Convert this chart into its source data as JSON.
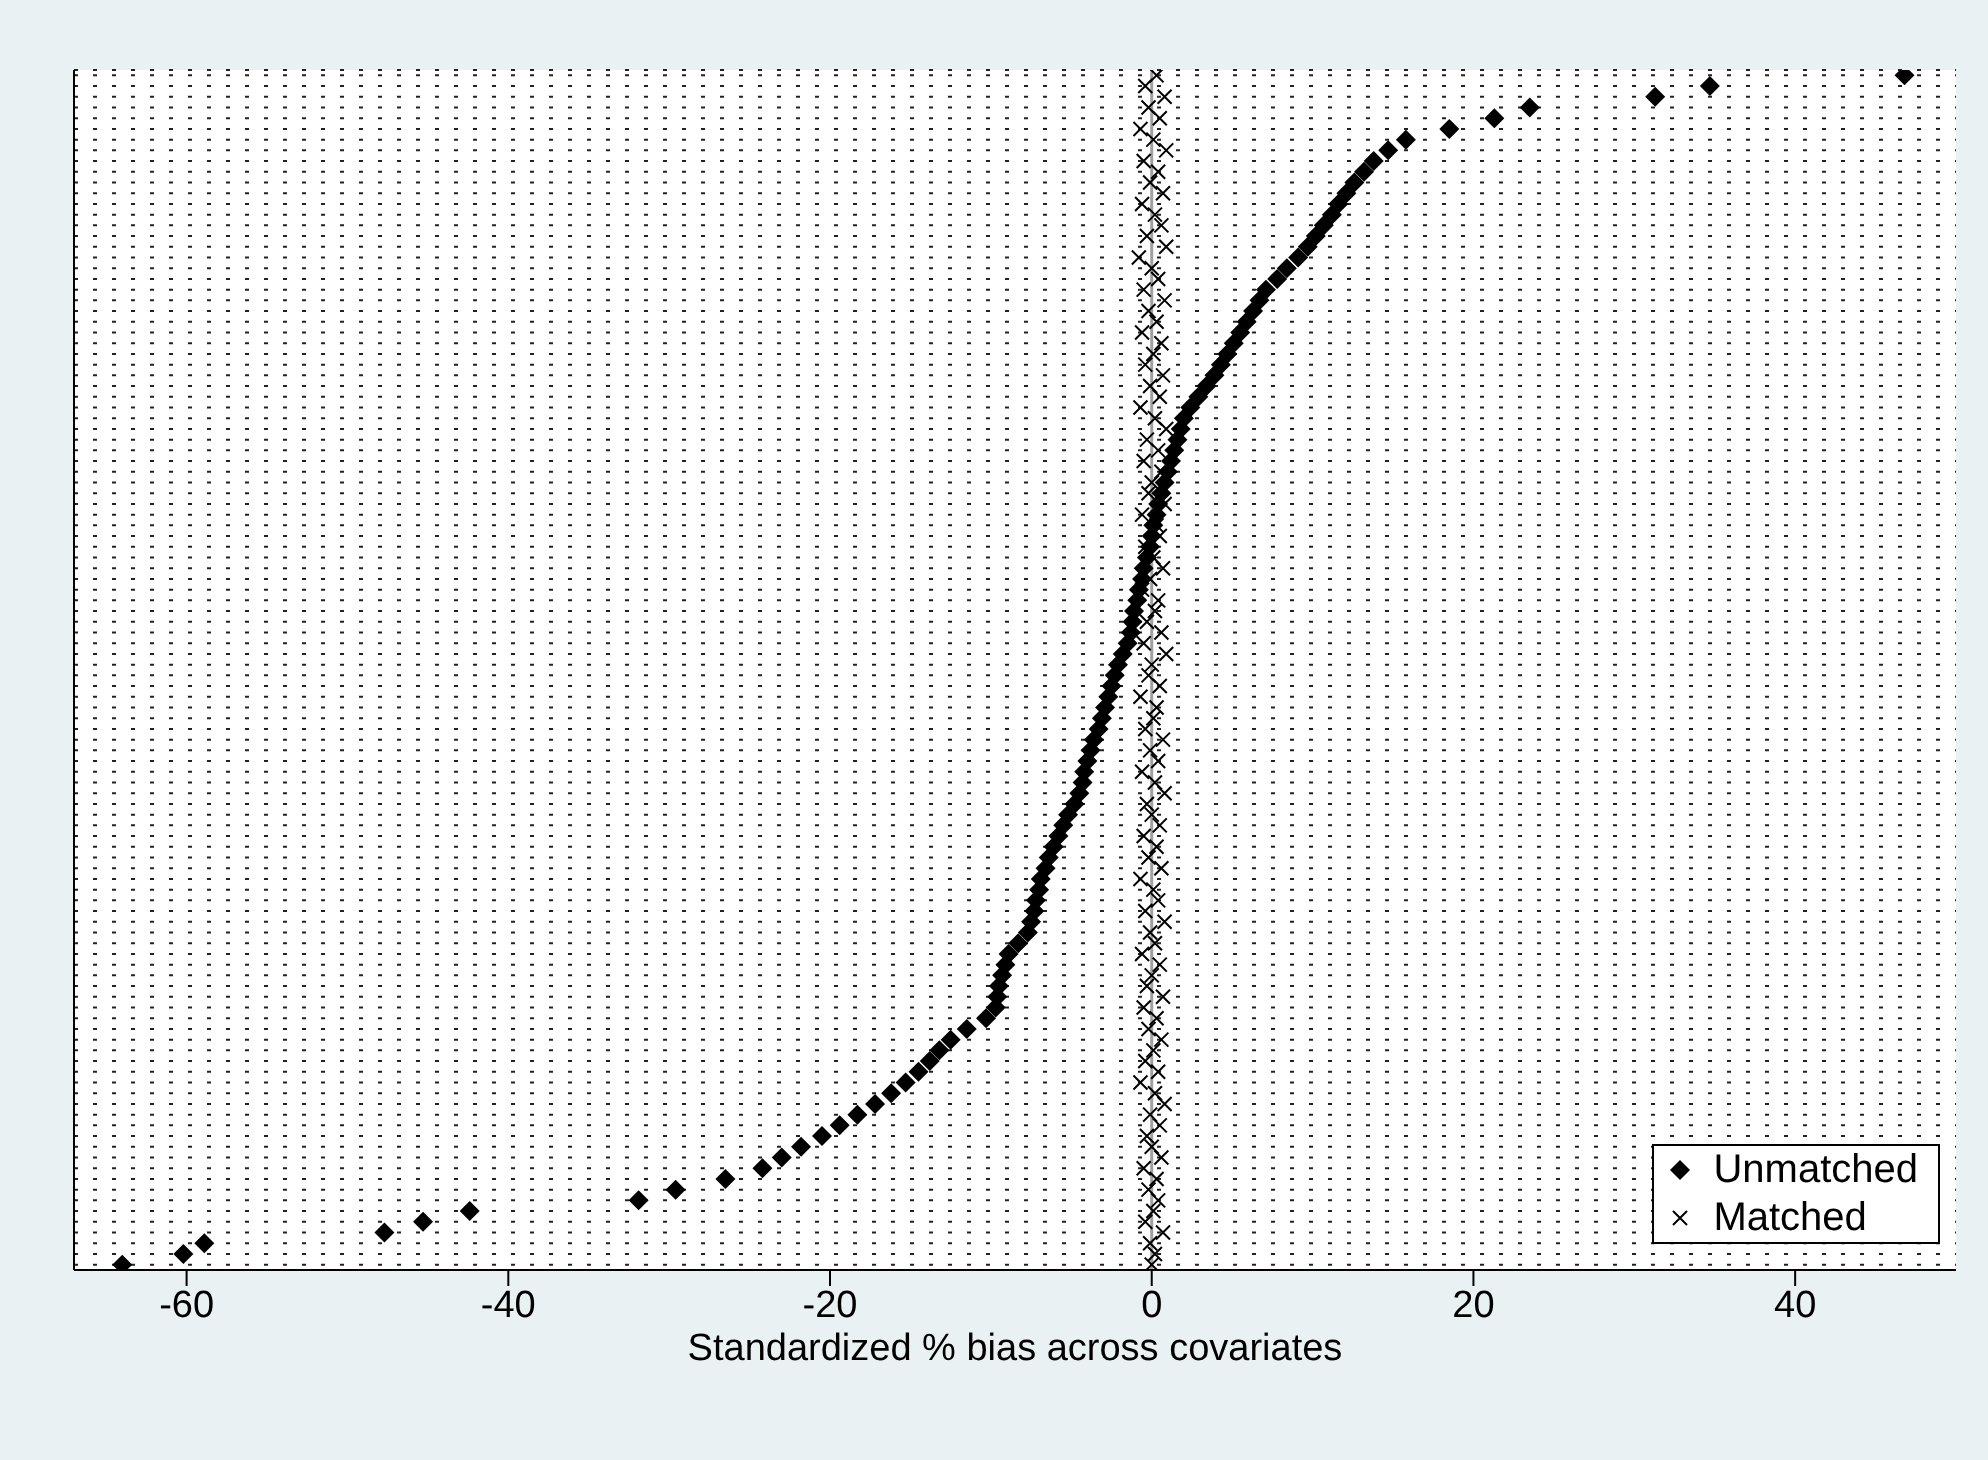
{
  "chart_data": {
    "type": "scatter",
    "orientation": "horizontal",
    "xlabel": "Standardized % bias across covariates",
    "xlim": [
      -67,
      50
    ],
    "xticks": [
      -60,
      -40,
      -20,
      0,
      20,
      40
    ],
    "tick_labels": "x",
    "grid": "y",
    "legend": "bottom right",
    "ref_lines": [
      {
        "axis": "x",
        "value": 0,
        "color": "#a0a0a0"
      }
    ],
    "categories": [
      null,
      null,
      null,
      null,
      null,
      null,
      null,
      null,
      null,
      null,
      null,
      null,
      null,
      null,
      null,
      null,
      null,
      null,
      null,
      null,
      null,
      null,
      null,
      null,
      null,
      null,
      null,
      null,
      null,
      null,
      null,
      null,
      null,
      null,
      null,
      null,
      null,
      null,
      null,
      null,
      null,
      null,
      null,
      null,
      null,
      null,
      null,
      null,
      null,
      null,
      null,
      null,
      null,
      null,
      null,
      null,
      null,
      null,
      null,
      null,
      null,
      null,
      null,
      null,
      null,
      null,
      null,
      null,
      null,
      null,
      null,
      null,
      null,
      null,
      null,
      null,
      null,
      null,
      null,
      null,
      null,
      null,
      null,
      null,
      null,
      null,
      null,
      null,
      null,
      null,
      null,
      null,
      null,
      null,
      null,
      null,
      null,
      null,
      null,
      null,
      null,
      null,
      null,
      null,
      null,
      null,
      null,
      null,
      null,
      null,
      null,
      null
    ],
    "series": [
      {
        "name": "Unmatched",
        "color": "#000000",
        "marker": "diamond",
        "values": [
          46.8,
          34.7,
          31.3,
          23.5,
          21.3,
          18.5,
          15.8,
          14.7,
          13.8,
          13.2,
          12.6,
          12.1,
          11.6,
          11.2,
          10.7,
          10.2,
          9.7,
          9.1,
          8.4,
          7.8,
          7.1,
          6.7,
          6.3,
          5.9,
          5.5,
          5.1,
          4.7,
          4.3,
          3.9,
          3.4,
          2.9,
          2.4,
          2.0,
          1.8,
          1.6,
          1.4,
          1.2,
          1.0,
          0.8,
          0.6,
          0.4,
          0.3,
          0.1,
          0.0,
          -0.1,
          -0.3,
          -0.5,
          -0.6,
          -0.8,
          -0.9,
          -1.1,
          -1.2,
          -1.3,
          -1.5,
          -1.8,
          -2.1,
          -2.3,
          -2.5,
          -2.7,
          -2.9,
          -3.1,
          -3.3,
          -3.6,
          -3.8,
          -4.0,
          -4.2,
          -4.3,
          -4.5,
          -4.8,
          -5.2,
          -5.5,
          -5.8,
          -6.1,
          -6.4,
          -6.6,
          -6.9,
          -7.0,
          -7.2,
          -7.3,
          -7.5,
          -7.7,
          -8.3,
          -8.9,
          -9.1,
          -9.3,
          -9.5,
          -9.6,
          -9.7,
          -10.3,
          -11.5,
          -12.5,
          -13.2,
          -13.8,
          -14.5,
          -15.3,
          -16.2,
          -17.2,
          -18.3,
          -19.4,
          -20.5,
          -21.8,
          -23.0,
          -24.2,
          -26.5,
          -29.6,
          -31.9,
          -42.4,
          -45.3,
          -47.7,
          -58.9,
          -60.2,
          -64.0
        ]
      },
      {
        "name": "Matched",
        "color": "#000000",
        "marker": "cross",
        "values": [
          0.3,
          -0.4,
          0.8,
          -0.2,
          0.5,
          -0.7,
          0.1,
          0.9,
          -0.5,
          0.4,
          -0.1,
          0.7,
          -0.6,
          0.2,
          0.6,
          -0.3,
          0.9,
          -0.8,
          0.0,
          0.4,
          -0.5,
          0.8,
          -0.2,
          0.3,
          -0.6,
          0.6,
          0.1,
          -0.4,
          0.7,
          -0.1,
          0.5,
          -0.7,
          0.2,
          0.9,
          -0.3,
          0.4,
          -0.5,
          0.6,
          0.0,
          -0.2,
          0.8,
          -0.6,
          0.3,
          0.5,
          -0.4,
          0.1,
          0.7,
          -0.1,
          -0.6,
          0.4,
          0.2,
          -0.3,
          0.6,
          -0.5,
          0.9,
          0.0,
          -0.2,
          0.5,
          -0.7,
          0.3,
          0.1,
          -0.4,
          0.7,
          -0.1,
          0.4,
          -0.6,
          0.2,
          0.8,
          -0.3,
          0.0,
          0.5,
          -0.5,
          0.3,
          -0.2,
          0.6,
          -0.7,
          0.1,
          0.4,
          -0.4,
          0.8,
          -0.1,
          0.2,
          -0.6,
          0.5,
          0.0,
          -0.3,
          0.7,
          -0.5,
          0.3,
          -0.2,
          0.6,
          0.1,
          -0.4,
          0.4,
          -0.7,
          0.2,
          0.8,
          -0.1,
          0.5,
          -0.3,
          0.0,
          0.6,
          -0.5,
          0.3,
          -0.2,
          0.4,
          0.1,
          -0.4,
          0.7,
          -0.1,
          0.2,
          0.0
        ]
      }
    ]
  }
}
